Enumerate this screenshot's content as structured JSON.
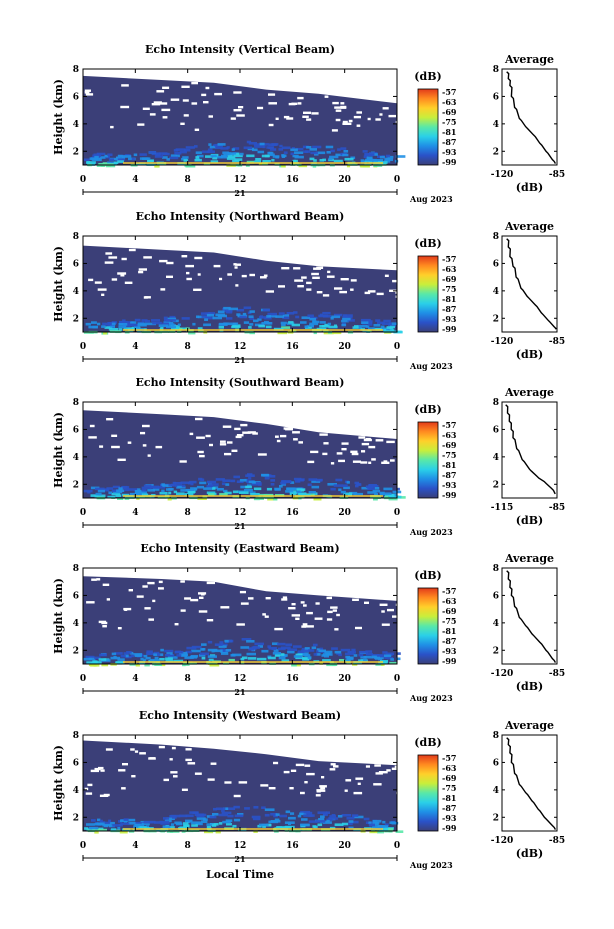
{
  "common": {
    "ylabel": "Height (km)",
    "y_ticks": [
      "2",
      "4",
      "6",
      "8"
    ],
    "x_ticks": [
      "0",
      "4",
      "8",
      "12",
      "16",
      "20",
      "0"
    ],
    "day_label": "21",
    "month_label": "Aug 2023",
    "colorbar_unit": "(dB)",
    "colorbar_ticks": [
      "-57",
      "-63",
      "-69",
      "-75",
      "-81",
      "-87",
      "-93",
      "-99"
    ],
    "avg_title": "Average",
    "avg_xlabel": "(dB)",
    "avg_y_ticks": [
      "2",
      "4",
      "6",
      "8"
    ],
    "xlabel_bottom": "Local Time"
  },
  "colors": {
    "background_fill": "#3b3f78",
    "colorbar_stops": [
      "#3a3f78",
      "#2a52c8",
      "#1f8fe6",
      "#2ad0e8",
      "#59e8a8",
      "#c8ee3c",
      "#ffd02a",
      "#ff8a20",
      "#e23a1a"
    ]
  },
  "chart_data": [
    {
      "type": "heatmap",
      "title": "Echo Intensity (Vertical Beam)",
      "xlim": [
        0,
        24
      ],
      "ylim": [
        1,
        8
      ],
      "top_of_echo_km": [
        [
          0,
          7.5
        ],
        [
          6,
          7.2
        ],
        [
          10,
          7.0
        ],
        [
          14,
          6.5
        ],
        [
          18,
          6.2
        ],
        [
          24,
          5.5
        ]
      ],
      "avg_profile": {
        "x_ticks": [
          "-120",
          "-85"
        ],
        "xlim": [
          -120,
          -85
        ],
        "ylim": [
          1,
          8
        ],
        "points": [
          [
            -117,
            7.8
          ],
          [
            -116,
            7.3
          ],
          [
            -115,
            6.8
          ],
          [
            -114,
            6.0
          ],
          [
            -112,
            5.2
          ],
          [
            -109,
            4.4
          ],
          [
            -105,
            3.8
          ],
          [
            -100,
            3.2
          ],
          [
            -96,
            2.6
          ],
          [
            -92,
            2.0
          ],
          [
            -88,
            1.4
          ],
          [
            -86,
            1.1
          ]
        ]
      }
    },
    {
      "type": "heatmap",
      "title": "Echo Intensity (Northward Beam)",
      "xlim": [
        0,
        24
      ],
      "ylim": [
        1,
        8
      ],
      "top_of_echo_km": [
        [
          0,
          7.3
        ],
        [
          6,
          7.0
        ],
        [
          10,
          6.8
        ],
        [
          14,
          6.2
        ],
        [
          18,
          5.8
        ],
        [
          24,
          5.5
        ]
      ],
      "avg_profile": {
        "x_ticks": [
          "-120",
          "-85"
        ],
        "xlim": [
          -120,
          -85
        ],
        "ylim": [
          1,
          8
        ],
        "points": [
          [
            -117,
            7.8
          ],
          [
            -116,
            7.2
          ],
          [
            -115,
            6.5
          ],
          [
            -113,
            5.8
          ],
          [
            -111,
            5.0
          ],
          [
            -108,
            4.2
          ],
          [
            -104,
            3.6
          ],
          [
            -99,
            3.0
          ],
          [
            -95,
            2.4
          ],
          [
            -91,
            1.9
          ],
          [
            -87,
            1.4
          ],
          [
            -86,
            1.2
          ]
        ]
      }
    },
    {
      "type": "heatmap",
      "title": "Echo Intensity (Southward Beam)",
      "xlim": [
        0,
        24
      ],
      "ylim": [
        1,
        8
      ],
      "top_of_echo_km": [
        [
          0,
          7.4
        ],
        [
          6,
          7.1
        ],
        [
          10,
          6.9
        ],
        [
          14,
          6.4
        ],
        [
          18,
          5.8
        ],
        [
          24,
          5.3
        ]
      ],
      "avg_profile": {
        "x_ticks": [
          "-115",
          "-85"
        ],
        "xlim": [
          -115,
          -85
        ],
        "ylim": [
          1,
          8
        ],
        "points": [
          [
            -113,
            7.8
          ],
          [
            -112,
            7.2
          ],
          [
            -111,
            6.6
          ],
          [
            -110,
            6.0
          ],
          [
            -109,
            5.4
          ],
          [
            -107,
            4.6
          ],
          [
            -104,
            3.8
          ],
          [
            -100,
            3.1
          ],
          [
            -96,
            2.6
          ],
          [
            -92,
            2.2
          ],
          [
            -88,
            1.7
          ],
          [
            -86,
            1.3
          ]
        ]
      }
    },
    {
      "type": "heatmap",
      "title": "Echo Intensity (Eastward Beam)",
      "xlim": [
        0,
        24
      ],
      "ylim": [
        1,
        8
      ],
      "top_of_echo_km": [
        [
          0,
          7.4
        ],
        [
          6,
          7.2
        ],
        [
          10,
          7.0
        ],
        [
          14,
          6.3
        ],
        [
          18,
          6.0
        ],
        [
          24,
          5.6
        ]
      ],
      "avg_profile": {
        "x_ticks": [
          "-120",
          "-85"
        ],
        "xlim": [
          -120,
          -85
        ],
        "ylim": [
          1,
          8
        ],
        "points": [
          [
            -117,
            7.8
          ],
          [
            -116,
            7.2
          ],
          [
            -115,
            6.6
          ],
          [
            -114,
            6.0
          ],
          [
            -112,
            5.2
          ],
          [
            -109,
            4.4
          ],
          [
            -105,
            3.8
          ],
          [
            -101,
            3.2
          ],
          [
            -96,
            2.6
          ],
          [
            -92,
            2.0
          ],
          [
            -88,
            1.4
          ],
          [
            -86,
            1.1
          ]
        ]
      }
    },
    {
      "type": "heatmap",
      "title": "Echo Intensity (Westward Beam)",
      "xlim": [
        0,
        24
      ],
      "ylim": [
        1,
        8
      ],
      "top_of_echo_km": [
        [
          0,
          7.6
        ],
        [
          6,
          7.3
        ],
        [
          10,
          7.0
        ],
        [
          14,
          6.6
        ],
        [
          18,
          6.1
        ],
        [
          24,
          5.8
        ]
      ],
      "avg_profile": {
        "x_ticks": [
          "-120",
          "-85"
        ],
        "xlim": [
          -120,
          -85
        ],
        "ylim": [
          1,
          8
        ],
        "points": [
          [
            -117,
            7.8
          ],
          [
            -116,
            7.3
          ],
          [
            -115,
            6.7
          ],
          [
            -114,
            6.0
          ],
          [
            -112,
            5.2
          ],
          [
            -109,
            4.4
          ],
          [
            -105,
            3.8
          ],
          [
            -101,
            3.2
          ],
          [
            -97,
            2.6
          ],
          [
            -93,
            2.0
          ],
          [
            -88,
            1.4
          ],
          [
            -86,
            1.1
          ]
        ]
      }
    }
  ]
}
